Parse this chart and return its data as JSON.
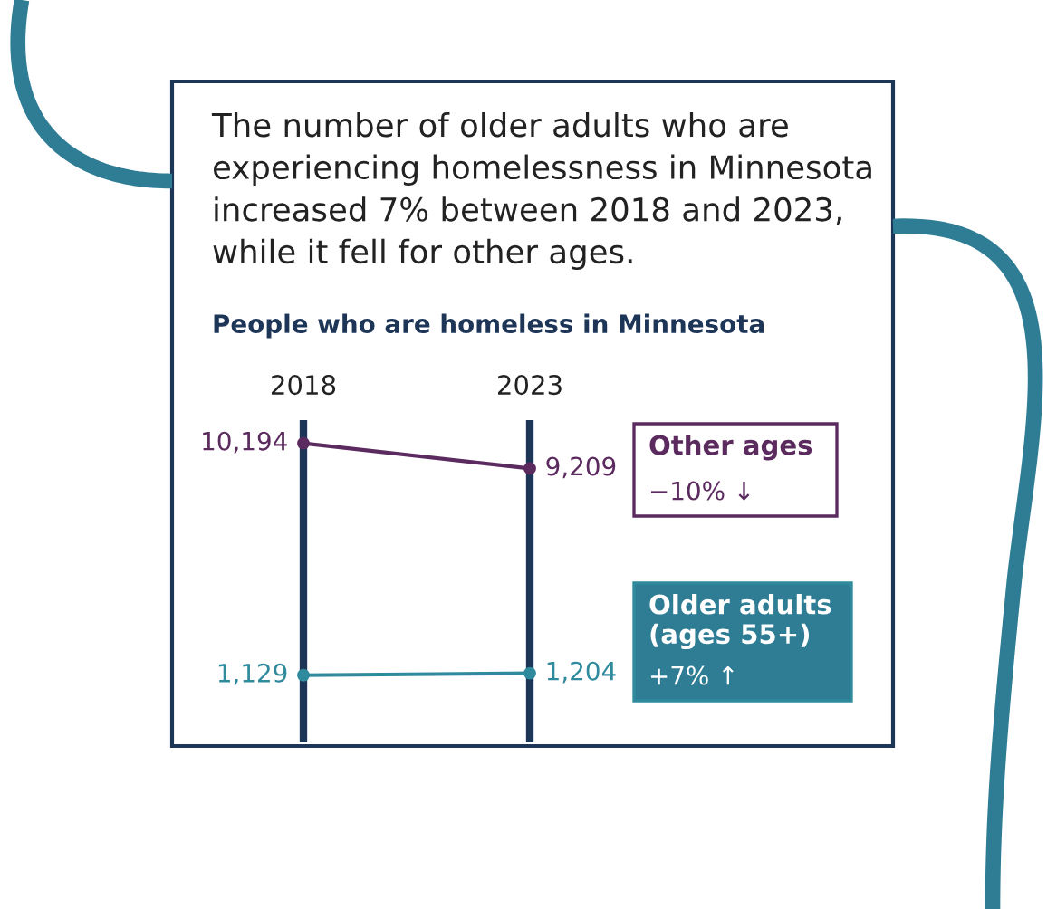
{
  "chart_data": {
    "type": "line",
    "title": "The number of older adults who are\nexperiencing homelessness in Minnesota\nincreased 7% between 2018 and 2023,\nwhile it fell for other ages.",
    "subtitle": "People who are homeless in Minnesota",
    "categories": [
      "2018",
      "2023"
    ],
    "series": [
      {
        "name": "Other ages",
        "color": "#5b2a5e",
        "values": [
          10194,
          9209
        ],
        "value_labels": [
          "10,194",
          "9,209"
        ]
      },
      {
        "name": "Older adults (ages 55+)",
        "color": "#2e8a9c",
        "values": [
          1129,
          1204
        ],
        "value_labels": [
          "1,129",
          "1,204"
        ]
      }
    ],
    "annotations": [
      "−10% ↓",
      "+7% ↑"
    ],
    "marker": "circle",
    "grid": "x"
  }
}
